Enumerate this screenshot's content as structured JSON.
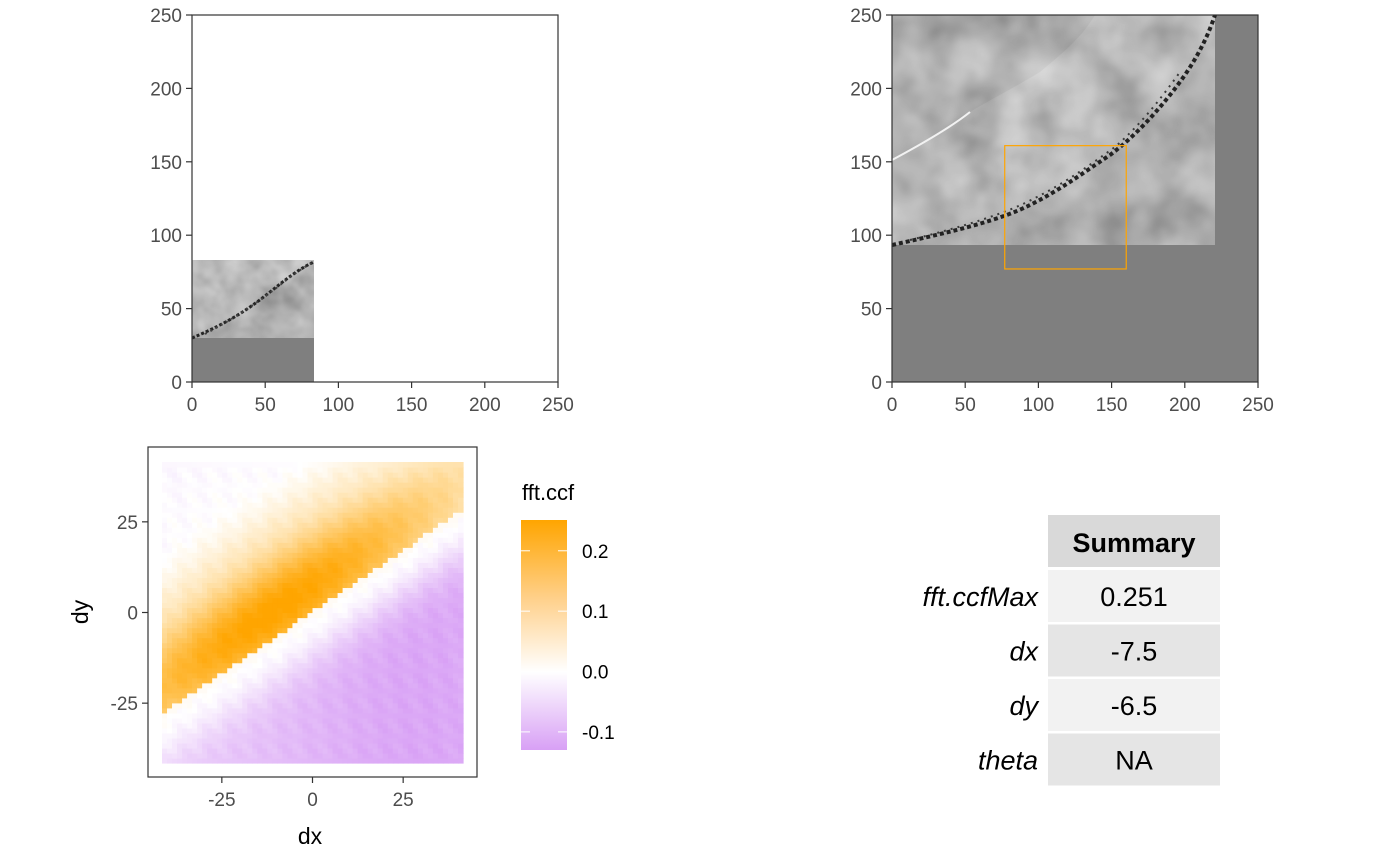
{
  "chart_data": [
    {
      "type": "heatmap",
      "title": "",
      "xlabel": "",
      "ylabel": "",
      "xlim": [
        0,
        250
      ],
      "ylim": [
        0,
        250
      ],
      "xticks": [
        0,
        50,
        100,
        150,
        200,
        250
      ],
      "yticks": [
        0,
        50,
        100,
        150,
        200,
        250
      ],
      "xtick_labels": [
        "0",
        "50",
        "100",
        "150",
        "200",
        "250"
      ],
      "ytick_labels": [
        "0",
        "50",
        "100",
        "150",
        "200",
        "250"
      ],
      "surface_block": {
        "x": [
          0,
          83
        ],
        "y": [
          0,
          83
        ]
      },
      "colors": {
        "base": "#7f7f7f",
        "texture_light": "#b0b0b0",
        "texture_dark": "#1e1e1e"
      }
    },
    {
      "type": "heatmap",
      "title": "",
      "xlabel": "",
      "ylabel": "",
      "xlim": [
        0,
        250
      ],
      "ylim": [
        0,
        250
      ],
      "xticks": [
        0,
        50,
        100,
        150,
        200,
        250
      ],
      "yticks": [
        0,
        50,
        100,
        150,
        200,
        250
      ],
      "xtick_labels": [
        "0",
        "50",
        "100",
        "150",
        "200",
        "250"
      ],
      "ytick_labels": [
        "0",
        "50",
        "100",
        "150",
        "200",
        "250"
      ],
      "highlight_box": {
        "x": [
          77,
          160
        ],
        "y": [
          77,
          161
        ],
        "color": "#ffa500"
      },
      "colors": {
        "base": "#7f7f7f",
        "texture_light": "#b8b8b8",
        "texture_dark": "#1e1e1e"
      }
    },
    {
      "type": "heatmap",
      "title": "",
      "xlabel": "dx",
      "ylabel": "dy",
      "xlim": [
        -41.5,
        41.5
      ],
      "ylim": [
        -41.5,
        41.5
      ],
      "xticks": [
        -25,
        0,
        25
      ],
      "yticks": [
        -25,
        0,
        25
      ],
      "xtick_labels": [
        "-25",
        "0",
        "25"
      ],
      "ytick_labels": [
        "-25",
        "0",
        "25"
      ],
      "legend": {
        "title": "fft.ccf",
        "min": -0.13,
        "max": 0.251,
        "ticks": [
          0.2,
          0.1,
          0.0,
          -0.1
        ],
        "tick_labels": [
          "0.2",
          "0.1",
          "0.0",
          "-0.1"
        ],
        "colors": {
          "high": "#ffa500",
          "mid": "#ffffff",
          "low": "#d8a0f5"
        }
      },
      "peak": {
        "dx": -7.5,
        "dy": -6.5,
        "value": 0.251
      }
    }
  ],
  "summary_table": {
    "header": "Summary",
    "rows": [
      {
        "label": "fft.ccfMax",
        "value": "0.251"
      },
      {
        "label": "dx",
        "value": "-7.5"
      },
      {
        "label": "dy",
        "value": "-6.5"
      },
      {
        "label": "theta",
        "value": "NA"
      }
    ]
  }
}
